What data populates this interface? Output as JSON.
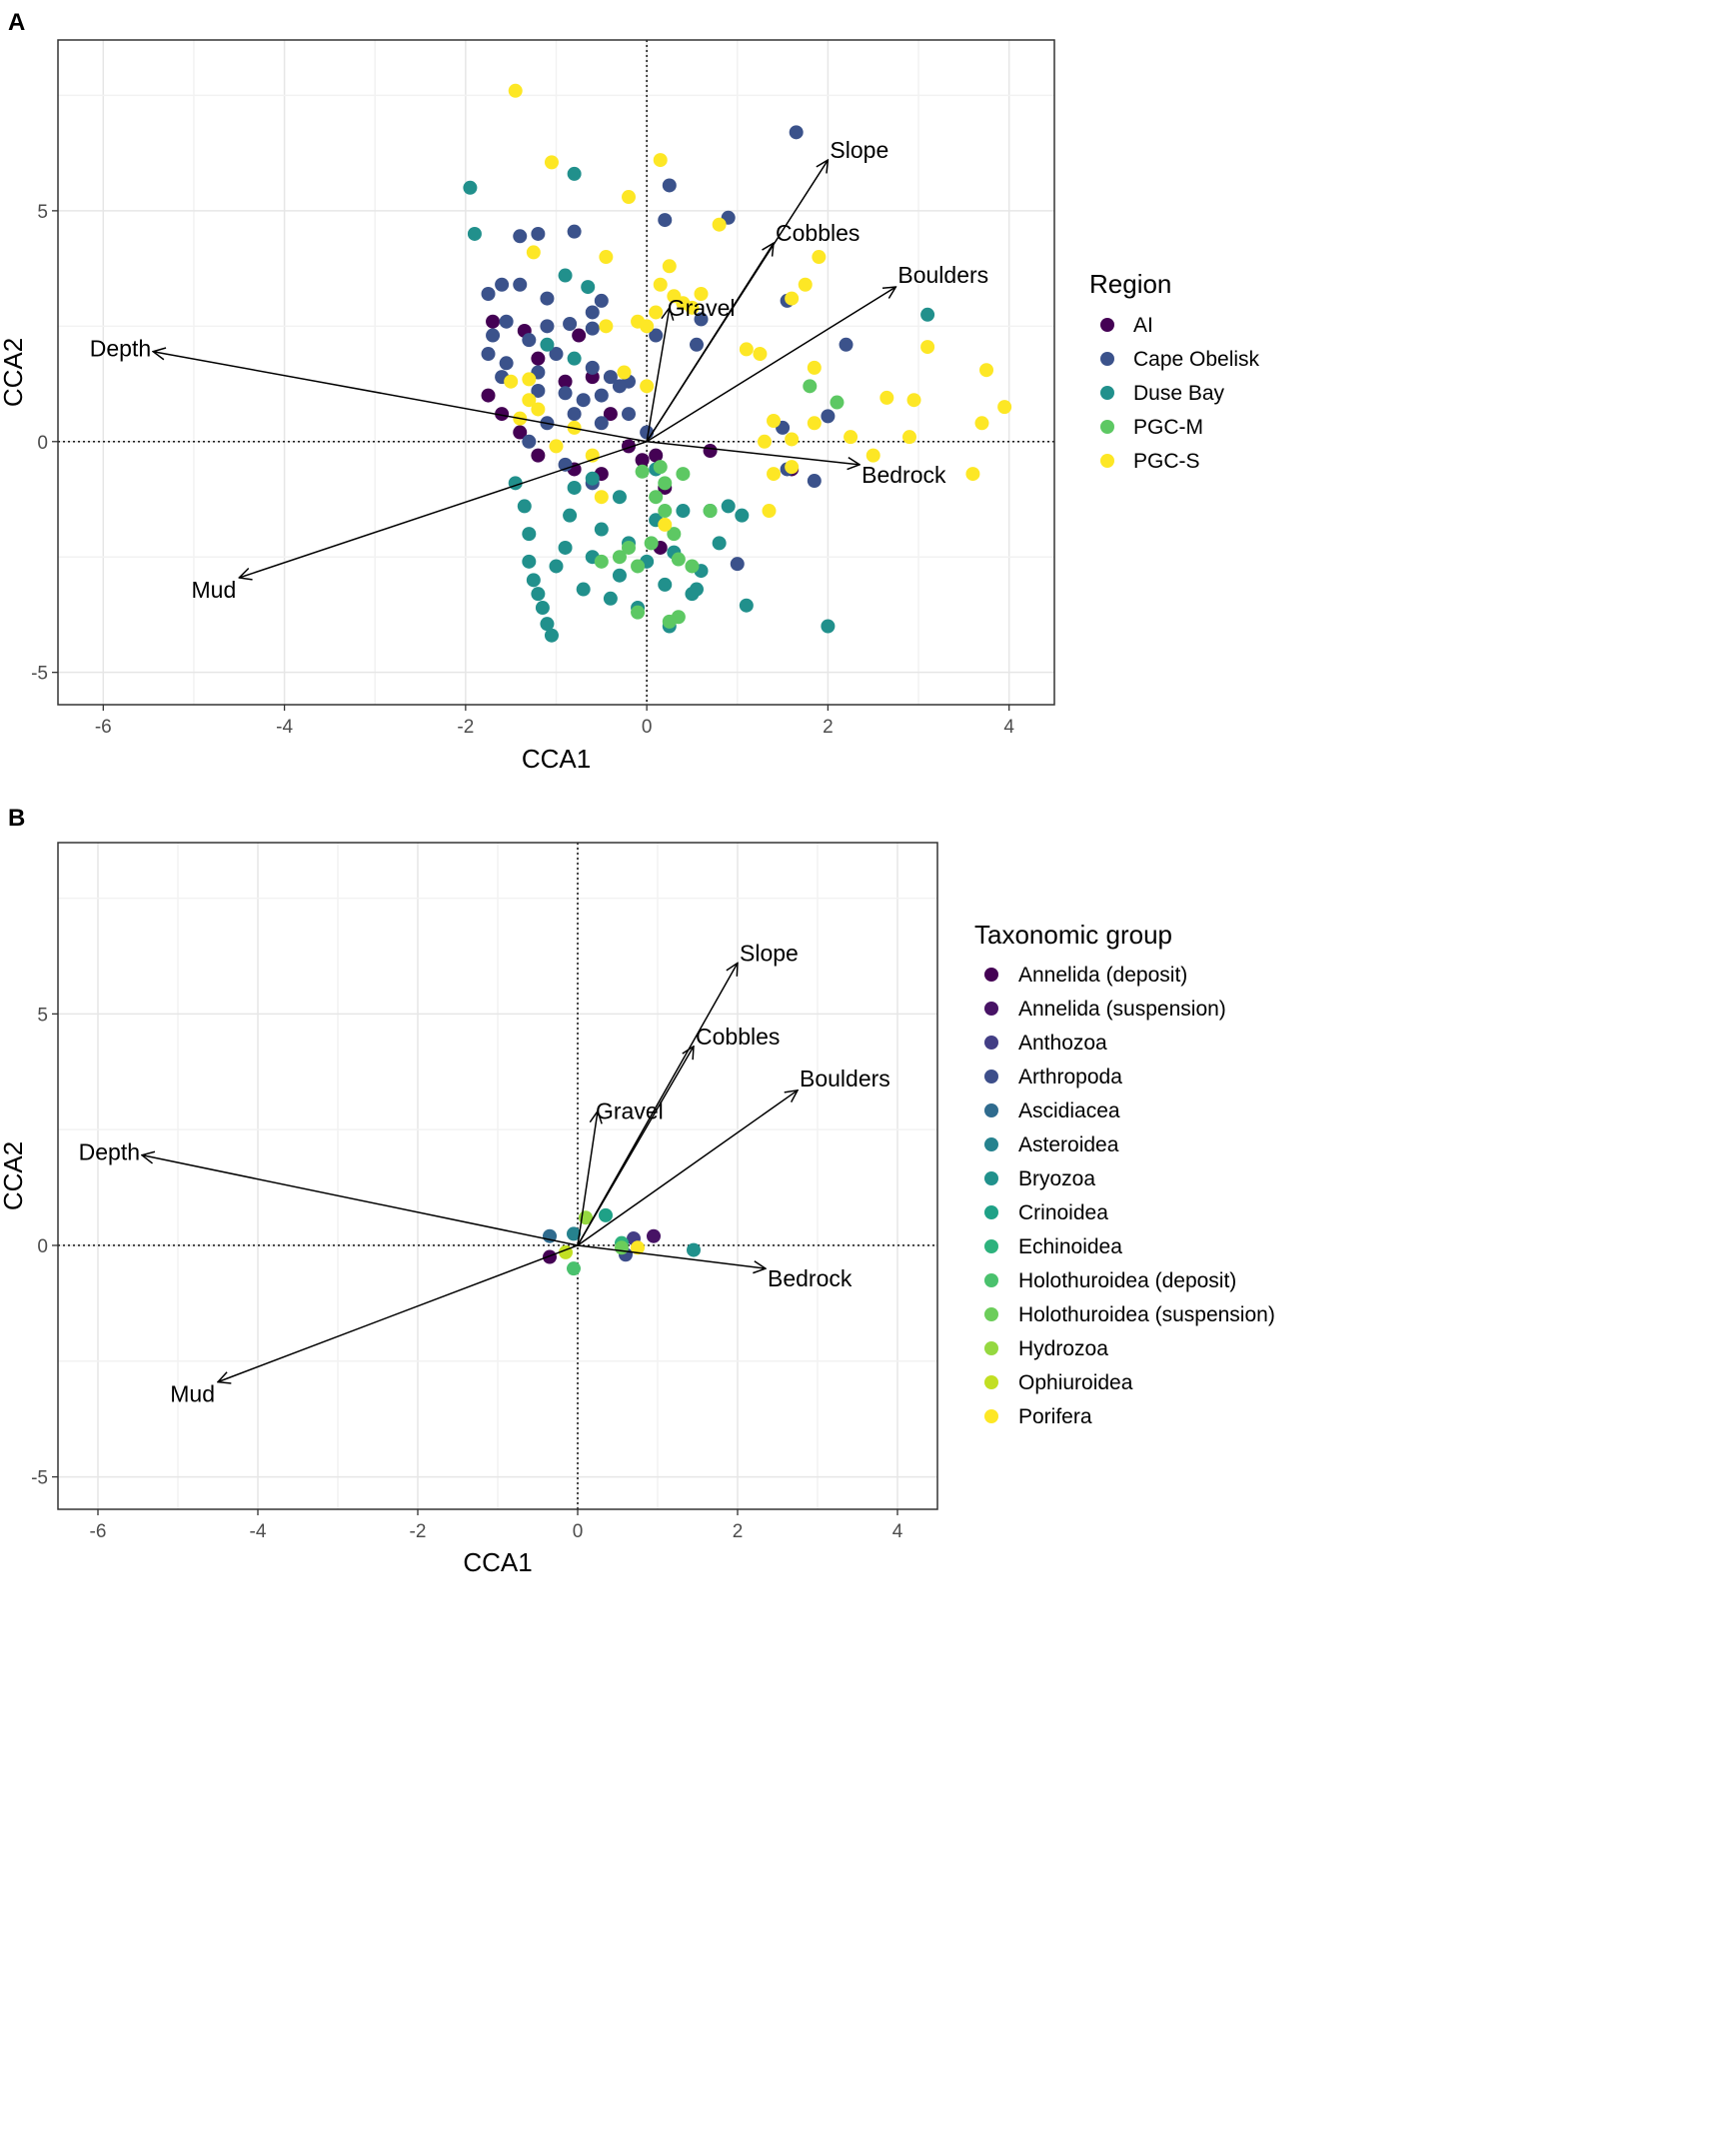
{
  "chart_data": [
    {
      "panel_label": "A",
      "type": "scatter",
      "title": "",
      "xlabel": "CCA1",
      "ylabel": "CCA2",
      "xlim": [
        -6.5,
        4.5
      ],
      "ylim": [
        -5.7,
        8.7
      ],
      "xticks": [
        -6,
        -4,
        -2,
        0,
        2,
        4
      ],
      "yticks": [
        -5,
        0,
        5
      ],
      "xtick_labels": [
        "-6",
        "-4",
        "-2",
        "0",
        "2",
        "4"
      ],
      "ytick_labels": [
        "-5",
        "0",
        "5"
      ],
      "grid": true,
      "legend": {
        "title": "Region",
        "placement": "right",
        "entries": [
          {
            "label": "AI",
            "color": "#440154"
          },
          {
            "label": "Cape Obelisk",
            "color": "#3B528B"
          },
          {
            "label": "Duse Bay",
            "color": "#21908C"
          },
          {
            "label": "PGC-M",
            "color": "#5DC863"
          },
          {
            "label": "PGC-S",
            "color": "#FDE725"
          }
        ]
      },
      "vectors": [
        {
          "label": "Slope",
          "x": 2.0,
          "y": 6.1
        },
        {
          "label": "Cobbles",
          "x": 1.4,
          "y": 4.3
        },
        {
          "label": "Boulders",
          "x": 2.75,
          "y": 3.35
        },
        {
          "label": "Gravel",
          "x": 0.25,
          "y": 2.9
        },
        {
          "label": "Depth",
          "x": -5.45,
          "y": 1.95
        },
        {
          "label": "Bedrock",
          "x": 2.35,
          "y": -0.5
        },
        {
          "label": "Mud",
          "x": -4.5,
          "y": -2.95
        }
      ],
      "series": [
        {
          "name": "AI",
          "points": [
            [
              -1.7,
              2.6
            ],
            [
              -1.35,
              2.4
            ],
            [
              -1.2,
              1.8
            ],
            [
              -0.6,
              1.4
            ],
            [
              -0.4,
              0.6
            ],
            [
              -0.2,
              -0.1
            ],
            [
              -0.05,
              -0.4
            ],
            [
              0.2,
              -1.0
            ],
            [
              0.7,
              -0.2
            ],
            [
              1.6,
              -0.6
            ],
            [
              -1.75,
              1.0
            ],
            [
              -1.6,
              0.6
            ],
            [
              -1.2,
              -0.3
            ],
            [
              -0.8,
              -0.6
            ],
            [
              -0.5,
              -0.7
            ],
            [
              -0.9,
              1.3
            ],
            [
              0.15,
              -2.3
            ],
            [
              -0.75,
              2.3
            ],
            [
              -1.4,
              0.2
            ],
            [
              0.1,
              -0.3
            ]
          ]
        },
        {
          "name": "Cape Obelisk",
          "points": [
            [
              1.65,
              6.7
            ],
            [
              0.9,
              4.85
            ],
            [
              0.25,
              5.55
            ],
            [
              0.2,
              4.8
            ],
            [
              -1.2,
              4.5
            ],
            [
              -0.8,
              4.55
            ],
            [
              -1.4,
              4.45
            ],
            [
              -1.75,
              3.2
            ],
            [
              -1.6,
              3.4
            ],
            [
              -1.4,
              3.4
            ],
            [
              -1.1,
              3.1
            ],
            [
              -0.5,
              3.05
            ],
            [
              -0.6,
              2.8
            ],
            [
              -1.55,
              2.6
            ],
            [
              -1.7,
              2.3
            ],
            [
              -1.1,
              2.5
            ],
            [
              -0.85,
              2.55
            ],
            [
              -0.6,
              2.45
            ],
            [
              -1.3,
              2.2
            ],
            [
              -1.75,
              1.9
            ],
            [
              -1.55,
              1.7
            ],
            [
              -1.0,
              1.9
            ],
            [
              -0.6,
              1.6
            ],
            [
              -0.4,
              1.4
            ],
            [
              -0.2,
              1.3
            ],
            [
              -1.2,
              1.1
            ],
            [
              -0.9,
              1.05
            ],
            [
              -0.5,
              1.0
            ],
            [
              -0.3,
              1.2
            ],
            [
              0.6,
              2.65
            ],
            [
              0.55,
              2.1
            ],
            [
              0.1,
              2.3
            ],
            [
              1.55,
              3.05
            ],
            [
              2.2,
              2.1
            ],
            [
              2.0,
              0.55
            ],
            [
              1.5,
              0.3
            ],
            [
              1.55,
              -0.6
            ],
            [
              1.85,
              -0.85
            ],
            [
              1.0,
              -2.65
            ],
            [
              -0.5,
              0.4
            ],
            [
              -0.8,
              0.6
            ],
            [
              -1.1,
              0.4
            ],
            [
              -1.3,
              0.0
            ],
            [
              -0.9,
              -0.5
            ],
            [
              -0.6,
              -0.9
            ],
            [
              -1.6,
              1.4
            ],
            [
              -1.2,
              1.5
            ],
            [
              -0.7,
              0.9
            ],
            [
              -0.2,
              0.6
            ],
            [
              0.0,
              0.2
            ]
          ]
        },
        {
          "name": "Duse Bay",
          "points": [
            [
              -1.95,
              5.5
            ],
            [
              -1.9,
              4.5
            ],
            [
              -0.8,
              5.8
            ],
            [
              -0.9,
              3.6
            ],
            [
              -0.65,
              3.35
            ],
            [
              -1.1,
              2.1
            ],
            [
              -0.8,
              1.8
            ],
            [
              3.1,
              2.75
            ],
            [
              -1.45,
              -0.9
            ],
            [
              -1.35,
              -1.4
            ],
            [
              -1.3,
              -2.0
            ],
            [
              -1.3,
              -2.6
            ],
            [
              -1.25,
              -3.0
            ],
            [
              -1.2,
              -3.3
            ],
            [
              -1.15,
              -3.6
            ],
            [
              -1.1,
              -3.95
            ],
            [
              -1.05,
              -4.2
            ],
            [
              -1.0,
              -2.7
            ],
            [
              -0.9,
              -2.3
            ],
            [
              -0.85,
              -1.6
            ],
            [
              -0.8,
              -1.0
            ],
            [
              -0.7,
              -3.2
            ],
            [
              -0.6,
              -2.5
            ],
            [
              -0.5,
              -1.9
            ],
            [
              -0.4,
              -3.4
            ],
            [
              -0.3,
              -2.9
            ],
            [
              -0.2,
              -2.2
            ],
            [
              -0.1,
              -3.6
            ],
            [
              0.0,
              -2.6
            ],
            [
              0.1,
              -1.7
            ],
            [
              0.2,
              -3.1
            ],
            [
              0.3,
              -2.4
            ],
            [
              0.4,
              -1.5
            ],
            [
              0.5,
              -3.3
            ],
            [
              0.6,
              -2.8
            ],
            [
              0.7,
              -1.5
            ],
            [
              0.8,
              -2.2
            ],
            [
              0.9,
              -1.4
            ],
            [
              1.05,
              -1.6
            ],
            [
              1.1,
              -3.55
            ],
            [
              0.55,
              -3.2
            ],
            [
              0.25,
              -4.0
            ],
            [
              2.0,
              -4.0
            ],
            [
              -0.6,
              -0.8
            ],
            [
              -0.3,
              -1.2
            ],
            [
              0.1,
              -0.6
            ]
          ]
        },
        {
          "name": "PGC-M",
          "points": [
            [
              1.8,
              1.2
            ],
            [
              2.1,
              0.85
            ],
            [
              -0.5,
              -2.6
            ],
            [
              -0.3,
              -2.5
            ],
            [
              -0.2,
              -2.3
            ],
            [
              -0.1,
              -2.7
            ],
            [
              0.05,
              -2.2
            ],
            [
              0.2,
              -1.5
            ],
            [
              0.3,
              -2.0
            ],
            [
              0.35,
              -2.55
            ],
            [
              0.4,
              -0.7
            ],
            [
              0.15,
              -0.55
            ],
            [
              -0.05,
              -0.65
            ],
            [
              0.1,
              -1.2
            ],
            [
              0.2,
              -0.9
            ],
            [
              0.35,
              -3.8
            ],
            [
              0.25,
              -3.9
            ],
            [
              -0.1,
              -3.7
            ],
            [
              0.7,
              -1.5
            ],
            [
              0.5,
              -2.7
            ]
          ]
        },
        {
          "name": "PGC-S",
          "points": [
            [
              -1.45,
              7.6
            ],
            [
              -1.05,
              6.05
            ],
            [
              0.15,
              6.1
            ],
            [
              -0.2,
              5.3
            ],
            [
              -0.45,
              4.0
            ],
            [
              0.15,
              3.4
            ],
            [
              0.25,
              3.8
            ],
            [
              -1.25,
              4.1
            ],
            [
              1.9,
              4.0
            ],
            [
              1.75,
              3.4
            ],
            [
              1.6,
              3.1
            ],
            [
              0.8,
              4.7
            ],
            [
              0.3,
              3.15
            ],
            [
              0.4,
              3.0
            ],
            [
              0.6,
              3.2
            ],
            [
              0.5,
              2.9
            ],
            [
              0.1,
              2.8
            ],
            [
              0.0,
              2.5
            ],
            [
              -0.1,
              2.6
            ],
            [
              -0.45,
              2.5
            ],
            [
              -1.3,
              1.35
            ],
            [
              -1.5,
              1.3
            ],
            [
              1.1,
              2.0
            ],
            [
              1.25,
              1.9
            ],
            [
              1.85,
              1.6
            ],
            [
              1.4,
              0.45
            ],
            [
              1.3,
              0.0
            ],
            [
              1.6,
              0.05
            ],
            [
              1.85,
              0.4
            ],
            [
              2.25,
              0.1
            ],
            [
              2.5,
              -0.3
            ],
            [
              2.65,
              0.95
            ],
            [
              2.95,
              0.9
            ],
            [
              3.1,
              2.05
            ],
            [
              3.75,
              1.55
            ],
            [
              3.95,
              0.75
            ],
            [
              3.7,
              0.4
            ],
            [
              2.9,
              0.1
            ],
            [
              3.6,
              -0.7
            ],
            [
              1.4,
              -0.7
            ],
            [
              1.35,
              -1.5
            ],
            [
              1.6,
              -0.55
            ],
            [
              -0.6,
              -0.3
            ],
            [
              -1.0,
              -0.1
            ],
            [
              -1.4,
              0.5
            ],
            [
              -1.3,
              0.9
            ],
            [
              -0.25,
              1.5
            ],
            [
              0.0,
              1.2
            ],
            [
              -0.5,
              -1.2
            ],
            [
              0.2,
              -1.8
            ],
            [
              -1.2,
              0.7
            ],
            [
              -0.8,
              0.3
            ]
          ]
        }
      ]
    },
    {
      "panel_label": "B",
      "type": "scatter",
      "title": "",
      "xlabel": "CCA1",
      "ylabel": "CCA2",
      "xlim": [
        -6.5,
        4.5
      ],
      "ylim": [
        -5.7,
        8.7
      ],
      "xticks": [
        -6,
        -4,
        -2,
        0,
        2,
        4
      ],
      "yticks": [
        -5,
        0,
        5
      ],
      "xtick_labels": [
        "-6",
        "-4",
        "-2",
        "0",
        "2",
        "4"
      ],
      "ytick_labels": [
        "-5",
        "0",
        "5"
      ],
      "grid": true,
      "legend": {
        "title": "Taxonomic group",
        "placement": "right",
        "entries": [
          {
            "label": "Annelida (deposit)",
            "color": "#440154"
          },
          {
            "label": "Annelida (suspension)",
            "color": "#471365"
          },
          {
            "label": "Anthozoa",
            "color": "#433E85"
          },
          {
            "label": "Arthropoda",
            "color": "#3D4E8A"
          },
          {
            "label": "Ascidiacea",
            "color": "#2F6B8E"
          },
          {
            "label": "Asteroidea",
            "color": "#26828E"
          },
          {
            "label": "Bryozoa",
            "color": "#21918C"
          },
          {
            "label": "Crinoidea",
            "color": "#1FA187"
          },
          {
            "label": "Echinoidea",
            "color": "#2DB27D"
          },
          {
            "label": "Holothuroidea (deposit)",
            "color": "#4AC16D"
          },
          {
            "label": "Holothuroidea (suspension)",
            "color": "#6CCD5A"
          },
          {
            "label": "Hydrozoa",
            "color": "#95D840"
          },
          {
            "label": "Ophiuroidea",
            "color": "#C2DF23"
          },
          {
            "label": "Porifera",
            "color": "#FDE725"
          }
        ]
      },
      "vectors": [
        {
          "label": "Slope",
          "x": 2.0,
          "y": 6.1
        },
        {
          "label": "Cobbles",
          "x": 1.45,
          "y": 4.3
        },
        {
          "label": "Boulders",
          "x": 2.75,
          "y": 3.35
        },
        {
          "label": "Gravel",
          "x": 0.25,
          "y": 2.9
        },
        {
          "label": "Depth",
          "x": -5.45,
          "y": 1.95
        },
        {
          "label": "Bedrock",
          "x": 2.35,
          "y": -0.5
        },
        {
          "label": "Mud",
          "x": -4.5,
          "y": -2.95
        }
      ],
      "points": [
        {
          "group": "Annelida (deposit)",
          "x": -0.35,
          "y": -0.25
        },
        {
          "group": "Annelida (suspension)",
          "x": 0.95,
          "y": 0.2
        },
        {
          "group": "Anthozoa",
          "x": 0.7,
          "y": 0.15
        },
        {
          "group": "Arthropoda",
          "x": 0.6,
          "y": -0.2
        },
        {
          "group": "Ascidiacea",
          "x": -0.35,
          "y": 0.2
        },
        {
          "group": "Asteroidea",
          "x": -0.05,
          "y": 0.25
        },
        {
          "group": "Bryozoa",
          "x": 1.45,
          "y": -0.1
        },
        {
          "group": "Crinoidea",
          "x": 0.35,
          "y": 0.65
        },
        {
          "group": "Echinoidea",
          "x": 0.55,
          "y": 0.05
        },
        {
          "group": "Holothuroidea (deposit)",
          "x": -0.05,
          "y": -0.5
        },
        {
          "group": "Holothuroidea (suspension)",
          "x": 0.55,
          "y": -0.05
        },
        {
          "group": "Hydrozoa",
          "x": 0.1,
          "y": 0.6
        },
        {
          "group": "Ophiuroidea",
          "x": -0.15,
          "y": -0.15
        },
        {
          "group": "Porifera",
          "x": 0.75,
          "y": -0.05
        }
      ]
    }
  ]
}
